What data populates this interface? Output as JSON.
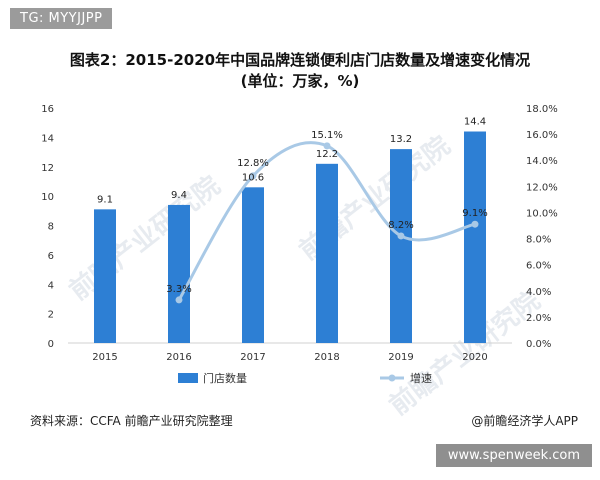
{
  "top_tag": "TG: MYYJJPP",
  "title_line1": "图表2：2015-2020年中国品牌连锁便利店门店数量及增速变化情况",
  "title_line2": "(单位：万家，%)",
  "source": "资料来源：CCFA 前瞻产业研究院整理",
  "credit": "@前瞻经济学人APP",
  "bottom_tag": "www.spenweek.com",
  "watermark": "前瞻产业研究院",
  "colors": {
    "bar": "#2d7fd4",
    "line": "#a9c9e6",
    "axis_text": "#333333",
    "label_text": "#222222"
  },
  "chart_data": {
    "type": "bar",
    "categories": [
      "2015",
      "2016",
      "2017",
      "2018",
      "2019",
      "2020"
    ],
    "series": [
      {
        "name": "门店数量",
        "type": "bar",
        "axis": "left",
        "values": [
          9.1,
          9.4,
          10.6,
          12.2,
          13.2,
          14.4
        ],
        "labels": [
          "9.1",
          "9.4",
          "10.6",
          "12.2",
          "13.2",
          "14.4"
        ]
      },
      {
        "name": "增速",
        "type": "line",
        "axis": "right",
        "values": [
          null,
          3.3,
          12.8,
          15.1,
          8.2,
          9.1
        ],
        "labels": [
          "",
          "3.3%",
          "12.8%",
          "15.1%",
          "8.2%",
          "9.1%"
        ]
      }
    ],
    "y_left": {
      "min": 0,
      "max": 16,
      "ticks": [
        "0",
        "2",
        "4",
        "6",
        "8",
        "10",
        "12",
        "14",
        "16"
      ]
    },
    "y_right": {
      "min": 0,
      "max": 18,
      "ticks": [
        "0.0%",
        "2.0%",
        "4.0%",
        "6.0%",
        "8.0%",
        "10.0%",
        "12.0%",
        "14.0%",
        "16.0%",
        "18.0%"
      ]
    },
    "legend": [
      "门店数量",
      "增速"
    ],
    "legend_position": "bottom",
    "grid": false
  }
}
